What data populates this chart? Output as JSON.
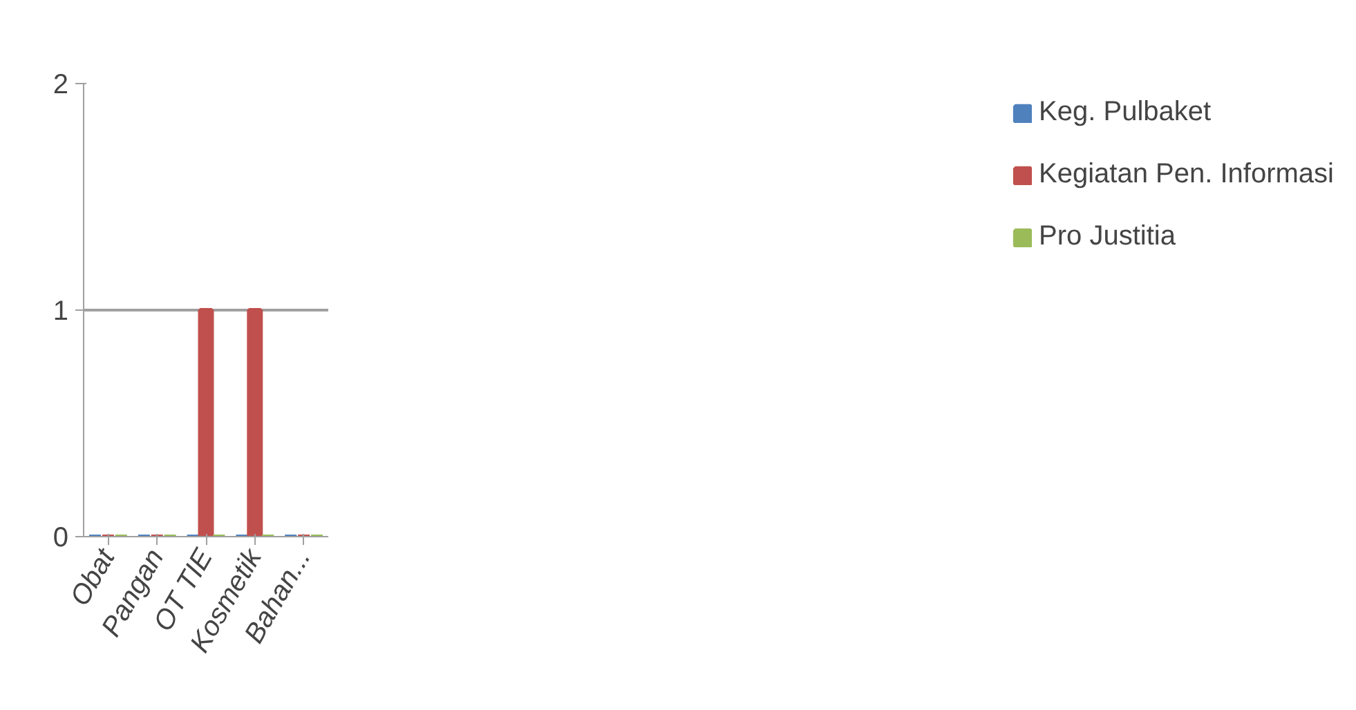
{
  "chart_data": {
    "type": "bar",
    "categories": [
      "Obat",
      "Pangan",
      "OT TIE",
      "Kosmetik",
      "Bahan..."
    ],
    "series": [
      {
        "name": "Keg. Pulbaket",
        "color": "#4f81bd",
        "values": [
          0,
          0,
          0,
          0,
          0
        ]
      },
      {
        "name": "Kegiatan Pen. Informasi",
        "color": "#c0504d",
        "values": [
          0,
          0,
          1,
          1,
          0
        ]
      },
      {
        "name": "Pro Justitia",
        "color": "#9bbb59",
        "values": [
          0,
          0,
          0,
          0,
          0
        ]
      }
    ],
    "ylim": [
      0,
      2
    ],
    "yticks": [
      0,
      1,
      2
    ],
    "grid": "y",
    "legend": "right"
  }
}
